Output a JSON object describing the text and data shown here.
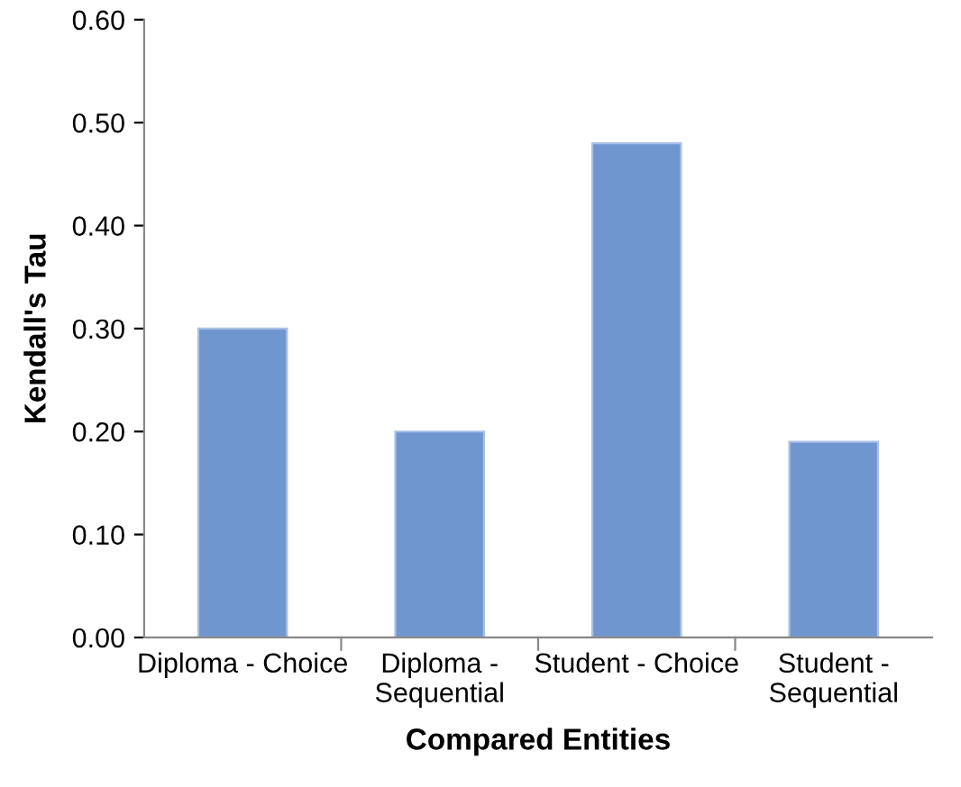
{
  "chart_data": {
    "type": "bar",
    "xlabel": "Compared Entities",
    "ylabel": "Kendall's Tau",
    "categories": [
      "Diploma - Choice",
      "Diploma -\nSequential",
      "Student - Choice",
      "Student -\nSequential"
    ],
    "values": [
      0.3,
      0.2,
      0.48,
      0.19
    ],
    "color": "#7096d0",
    "ylim": [
      0,
      0.6
    ],
    "yticks": [
      {
        "value": 0,
        "label": "0.00"
      },
      {
        "value": 0.1,
        "label": "0.10"
      },
      {
        "value": 0.2,
        "label": "0.20"
      },
      {
        "value": 0.3,
        "label": "0.30"
      },
      {
        "value": 0.4,
        "label": "0.40"
      },
      {
        "value": 0.5,
        "label": "0.50"
      },
      {
        "value": 0.6,
        "label": "0.60"
      }
    ],
    "grid": false,
    "legend": false
  }
}
